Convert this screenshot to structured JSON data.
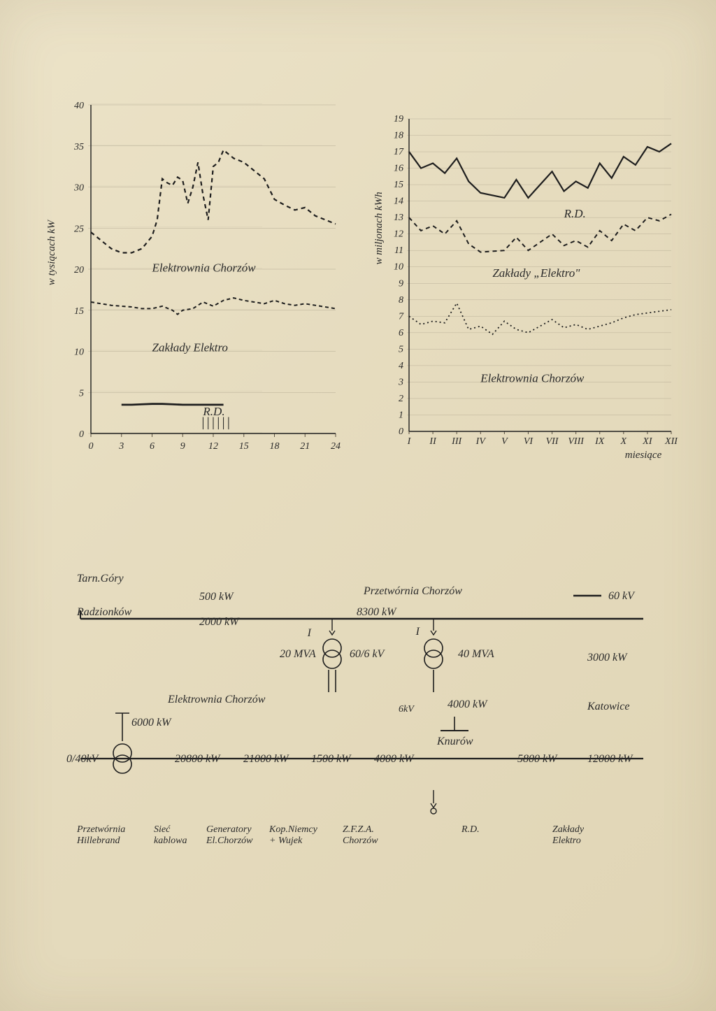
{
  "chartLeft": {
    "type": "line",
    "xlim": [
      0,
      24
    ],
    "ylim": [
      0,
      40
    ],
    "xtick_labels": [
      "0",
      "3",
      "6",
      "9",
      "12",
      "15",
      "18",
      "21",
      "24"
    ],
    "ytick_labels": [
      "0",
      "5",
      "10",
      "15",
      "20",
      "25",
      "30",
      "35",
      "40"
    ],
    "ylabel": "w tysiącach kW",
    "xmarker_label": "R.D.",
    "grid_color": "#5a5142",
    "line_color": "#1e1e1e",
    "labels": {
      "elektrownia": "Elektrownia Chorzów",
      "zaklady": "Zakłady Elektro"
    },
    "series": {
      "elektrownia": {
        "dash": "6,5",
        "width": 2.2,
        "points": [
          [
            0,
            24.5
          ],
          [
            1,
            23.5
          ],
          [
            2,
            22.5
          ],
          [
            3,
            22
          ],
          [
            4,
            22
          ],
          [
            5,
            22.5
          ],
          [
            6,
            24
          ],
          [
            6.5,
            26
          ],
          [
            7,
            31
          ],
          [
            7.5,
            30.5
          ],
          [
            8,
            30.2
          ],
          [
            8.5,
            31.2
          ],
          [
            9,
            30.8
          ],
          [
            9.5,
            28
          ],
          [
            10,
            30
          ],
          [
            10.5,
            33
          ],
          [
            11,
            29
          ],
          [
            11.5,
            26
          ],
          [
            12,
            32.5
          ],
          [
            12.5,
            33
          ],
          [
            13,
            34.5
          ],
          [
            13.5,
            34
          ],
          [
            14,
            33.5
          ],
          [
            15,
            33
          ],
          [
            15.5,
            32.5
          ],
          [
            16,
            32
          ],
          [
            16.5,
            31.5
          ],
          [
            17,
            31
          ],
          [
            18,
            28.5
          ],
          [
            19,
            27.8
          ],
          [
            20,
            27.2
          ],
          [
            21,
            27.5
          ],
          [
            22,
            26.5
          ],
          [
            23,
            26
          ],
          [
            24,
            25.5
          ]
        ]
      },
      "zaklady": {
        "dash": "5,4",
        "width": 2,
        "points": [
          [
            0,
            16
          ],
          [
            1,
            15.8
          ],
          [
            2,
            15.6
          ],
          [
            3,
            15.5
          ],
          [
            4,
            15.4
          ],
          [
            5,
            15.2
          ],
          [
            6,
            15.2
          ],
          [
            7,
            15.5
          ],
          [
            8,
            15
          ],
          [
            8.5,
            14.5
          ],
          [
            9,
            15
          ],
          [
            10,
            15.2
          ],
          [
            11,
            16
          ],
          [
            12,
            15.5
          ],
          [
            13,
            16.2
          ],
          [
            14,
            16.5
          ],
          [
            15,
            16.2
          ],
          [
            16,
            16
          ],
          [
            17,
            15.8
          ],
          [
            18,
            16.2
          ],
          [
            19,
            15.8
          ],
          [
            20,
            15.6
          ],
          [
            21,
            15.8
          ],
          [
            22,
            15.6
          ],
          [
            23,
            15.4
          ],
          [
            24,
            15.2
          ]
        ]
      },
      "rd": {
        "dash": "none",
        "width": 2.8,
        "points": [
          [
            3,
            3.5
          ],
          [
            4,
            3.5
          ],
          [
            5,
            3.55
          ],
          [
            6,
            3.6
          ],
          [
            7,
            3.6
          ],
          [
            8,
            3.55
          ],
          [
            9,
            3.5
          ],
          [
            10,
            3.5
          ],
          [
            11,
            3.5
          ],
          [
            12,
            3.5
          ],
          [
            13,
            3.5
          ]
        ]
      }
    }
  },
  "chartRight": {
    "type": "line",
    "xlim": [
      1,
      12
    ],
    "ylim": [
      0,
      19
    ],
    "xtick_labels": [
      "I",
      "II",
      "III",
      "IV",
      "V",
      "VI",
      "VII",
      "VIII",
      "IX",
      "X",
      "XI",
      "XII"
    ],
    "ytick_labels": [
      "0",
      "1",
      "2",
      "3",
      "4",
      "5",
      "6",
      "7",
      "8",
      "9",
      "10",
      "11",
      "12",
      "13",
      "14",
      "15",
      "16",
      "17",
      "18",
      "19"
    ],
    "ylabel": "w miljonach kWh",
    "xlabel": "miesiące",
    "grid_color": "#5a5142",
    "line_color": "#1e1e1e",
    "labels": {
      "rd": "R.D.",
      "zaklady": "Zakłady „Elektro\"",
      "elektrownia": "Elektrownia Chorzów"
    },
    "series": {
      "top": {
        "dash": "none",
        "width": 2.2,
        "points": [
          [
            1,
            17
          ],
          [
            1.5,
            16
          ],
          [
            2,
            16.3
          ],
          [
            2.5,
            15.7
          ],
          [
            3,
            16.6
          ],
          [
            3.5,
            15.2
          ],
          [
            4,
            14.5
          ],
          [
            5,
            14.2
          ],
          [
            5.5,
            15.3
          ],
          [
            6,
            14.2
          ],
          [
            7,
            15.8
          ],
          [
            7.5,
            14.6
          ],
          [
            8,
            15.2
          ],
          [
            8.5,
            14.8
          ],
          [
            9,
            16.3
          ],
          [
            9.5,
            15.4
          ],
          [
            10,
            16.7
          ],
          [
            10.5,
            16.2
          ],
          [
            11,
            17.3
          ],
          [
            11.5,
            17
          ],
          [
            12,
            17.5
          ]
        ]
      },
      "mid": {
        "dash": "6,5",
        "width": 2,
        "points": [
          [
            1,
            13
          ],
          [
            1.5,
            12.2
          ],
          [
            2,
            12.5
          ],
          [
            2.5,
            12
          ],
          [
            3,
            12.8
          ],
          [
            3.5,
            11.4
          ],
          [
            4,
            10.9
          ],
          [
            5,
            11
          ],
          [
            5.5,
            11.8
          ],
          [
            6,
            11
          ],
          [
            7,
            12
          ],
          [
            7.5,
            11.3
          ],
          [
            8,
            11.6
          ],
          [
            8.5,
            11.2
          ],
          [
            9,
            12.2
          ],
          [
            9.5,
            11.6
          ],
          [
            10,
            12.6
          ],
          [
            10.5,
            12.2
          ],
          [
            11,
            13
          ],
          [
            11.5,
            12.8
          ],
          [
            12,
            13.2
          ]
        ]
      },
      "low": {
        "dash": "2,4",
        "width": 1.8,
        "points": [
          [
            1,
            7
          ],
          [
            1.5,
            6.5
          ],
          [
            2,
            6.7
          ],
          [
            2.5,
            6.6
          ],
          [
            3,
            7.8
          ],
          [
            3.5,
            6.2
          ],
          [
            4,
            6.4
          ],
          [
            4.5,
            5.9
          ],
          [
            5,
            6.7
          ],
          [
            5.5,
            6.2
          ],
          [
            6,
            6.0
          ],
          [
            7,
            6.8
          ],
          [
            7.5,
            6.3
          ],
          [
            8,
            6.5
          ],
          [
            8.5,
            6.2
          ],
          [
            9,
            6.4
          ],
          [
            9.5,
            6.6
          ],
          [
            10,
            6.9
          ],
          [
            10.5,
            7.1
          ],
          [
            11,
            7.2
          ],
          [
            11.5,
            7.3
          ],
          [
            12,
            7.4
          ]
        ]
      }
    }
  },
  "diagram": {
    "title_left": "Tarn.Góry",
    "labels": {
      "radzionkow": "Radzionków",
      "przetwornia_chorzow": "Przetwórnia Chorzów",
      "elektrownia_chorzow": "Elektrownia Chorzów",
      "knurow": "Knurów",
      "katowice": "Katowice",
      "v60kv": "60 kV",
      "v0_40kv": "0/40kV",
      "v6kv": "6kV",
      "v60_6kv": "60/6 kV",
      "kw500": "500 kW",
      "kw2000": "2000 kW",
      "kw8300": "8300 kW",
      "kw6000": "6000 kW",
      "kw20800": "20800 kW",
      "kw21000": "21000 kW",
      "kw1500": "1500 kW",
      "kw4000a": "4000 kW",
      "kw4000b": "4000 kW",
      "kw5800": "5800 kW",
      "kw12000": "12000 kW",
      "kw3000": "3000 kW",
      "mva20": "20 MVA",
      "mva40": "40 MVA",
      "I1": "I",
      "I2": "I",
      "footer_przetwornia": "Przetwórnia\nHillebrand",
      "footer_siec": "Sieć\nkablowa",
      "footer_generatory": "Generatory\nEl.Chorzów",
      "footer_kop": "Kop.Niemcy\n+ Wujek",
      "footer_zfza": "Z.F.Z.A.\nChorzów",
      "footer_rd": "R.D.",
      "footer_zaklady": "Zakłady\nElektro"
    }
  }
}
